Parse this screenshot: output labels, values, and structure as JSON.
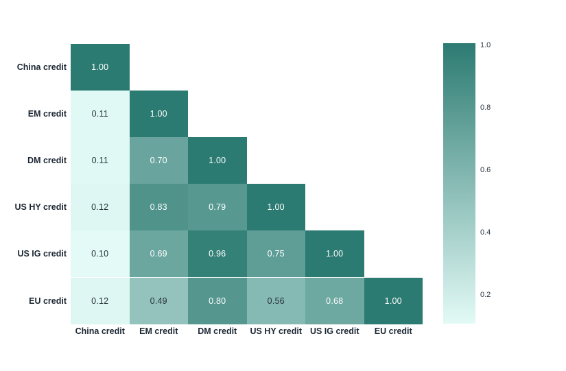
{
  "figure": {
    "background": "#ffffff"
  },
  "chart_data": {
    "type": "heatmap",
    "subtype": "correlation-matrix-lower-triangle",
    "rows": [
      "China credit",
      "EM credit",
      "DM credit",
      "US HY credit",
      "US IG credit",
      "EU credit"
    ],
    "columns": [
      "China credit",
      "EM credit",
      "DM credit",
      "US HY credit",
      "US IG credit",
      "EU credit"
    ],
    "matrix": [
      [
        1.0,
        null,
        null,
        null,
        null,
        null
      ],
      [
        0.11,
        1.0,
        null,
        null,
        null,
        null
      ],
      [
        0.11,
        0.7,
        1.0,
        null,
        null,
        null
      ],
      [
        0.12,
        0.83,
        0.79,
        1.0,
        null,
        null
      ],
      [
        0.1,
        0.69,
        0.96,
        0.75,
        1.0,
        null
      ],
      [
        0.12,
        0.49,
        0.8,
        0.56,
        0.68,
        1.0
      ]
    ],
    "value_decimals": 2,
    "grid": false,
    "legend_position": "right",
    "colorbar": {
      "min": 0.1,
      "max": 1.0,
      "tick_labels": [
        "1.0",
        "0.8",
        "0.6",
        "0.4",
        "0.2"
      ],
      "tick_values": [
        1.0,
        0.8,
        0.6,
        0.4,
        0.2
      ]
    },
    "colors": {
      "low": "#e3faf6",
      "high": "#2c7b72",
      "cell_text_dark": "#263238",
      "cell_text_light": "#ffffff",
      "text_switch_threshold": 0.6,
      "axis_label": "#1c2733"
    }
  }
}
